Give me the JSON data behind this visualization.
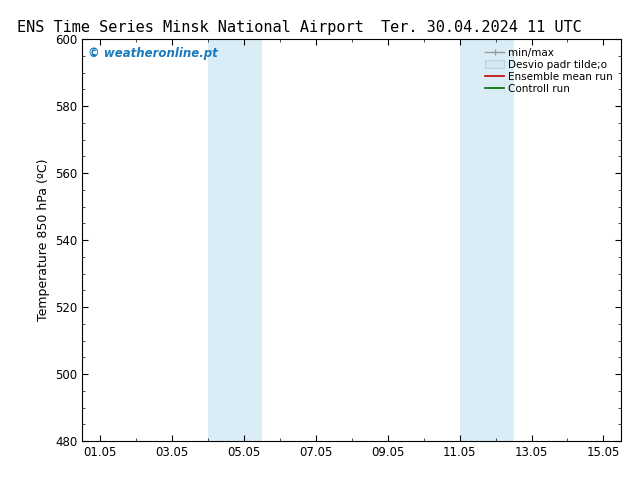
{
  "title_left": "ENS Time Series Minsk National Airport",
  "title_right": "Ter. 30.04.2024 11 UTC",
  "ylabel": "Temperature 850 hPa (ºC)",
  "ylim": [
    480,
    600
  ],
  "yticks": [
    480,
    500,
    520,
    540,
    560,
    580,
    600
  ],
  "xtick_labels": [
    "01.05",
    "03.05",
    "05.05",
    "07.05",
    "09.05",
    "11.05",
    "13.05",
    "15.05"
  ],
  "xtick_positions": [
    1,
    3,
    5,
    7,
    9,
    11,
    13,
    15
  ],
  "xlim": [
    0.5,
    15.5
  ],
  "shaded_regions": [
    {
      "start": 4.0,
      "end": 5.5,
      "color": "#daedf7"
    },
    {
      "start": 11.0,
      "end": 12.5,
      "color": "#daedf7"
    }
  ],
  "watermark_text": "© weatheronline.pt",
  "watermark_color": "#1a7abf",
  "bg_color": "#ffffff",
  "title_fontsize": 11,
  "axis_fontsize": 9,
  "tick_fontsize": 8.5,
  "legend_labels": [
    "min/max",
    "Desvio padr tilde;o",
    "Ensemble mean run",
    "Controll run"
  ],
  "legend_colors": [
    "#999999",
    "#c8dce8",
    "#cc0000",
    "#006600"
  ],
  "legend_lws": [
    1.0,
    6.0,
    1.2,
    1.2
  ]
}
